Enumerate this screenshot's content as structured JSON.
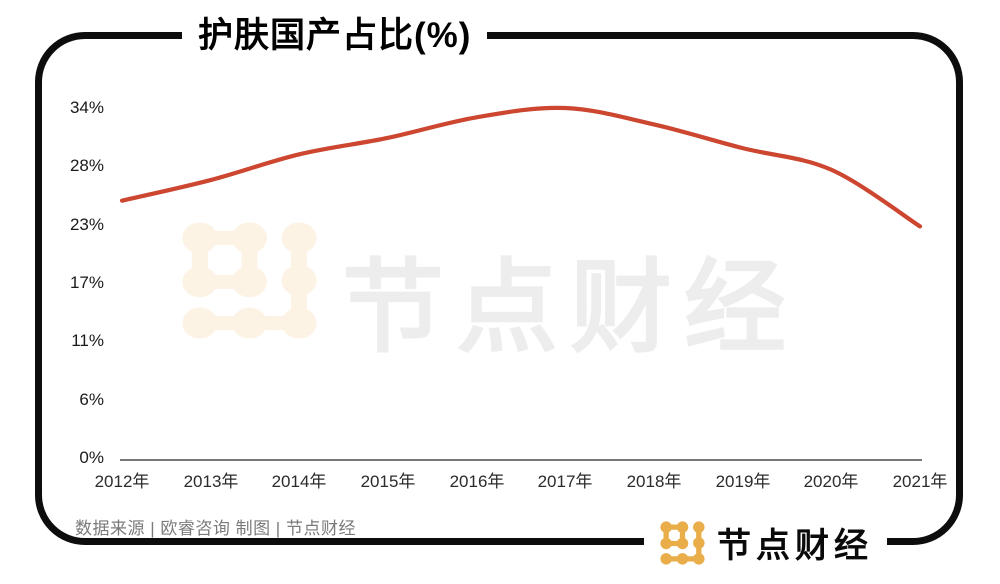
{
  "title": "护肤国产占比(%)",
  "watermark": {
    "text": "节点财经",
    "icon": "jiedian-node-dots-logo"
  },
  "footer": {
    "source_text": "数据来源 | 欧睿咨询  制图 | 节点财经",
    "logo_text": "节点财经",
    "logo_icon": "jiedian-node-dots-logo"
  },
  "colors": {
    "line": "#CC4630",
    "logo_gold": "#E9AE4A",
    "watermark_icon": "#FCF3E5",
    "watermark_text": "#EDEDED",
    "source_text": "#7A7A7A",
    "axis_line": "#4A4A4A",
    "border": "#0D0D0D"
  },
  "chart_data": {
    "type": "line",
    "title": "护肤国产占比(%)",
    "x": [
      "2012年",
      "2013年",
      "2014年",
      "2015年",
      "2016年",
      "2017年",
      "2018年",
      "2019年",
      "2020年",
      "2021年"
    ],
    "values": [
      25.0,
      27.0,
      29.5,
      31.1,
      33.1,
      34.0,
      32.4,
      30.1,
      28.0,
      22.5
    ],
    "yticks": [
      "0%",
      "6%",
      "11%",
      "17%",
      "23%",
      "28%",
      "34%"
    ],
    "ylim": [
      0,
      34
    ],
    "grid": false,
    "legend": false,
    "line_color": "#CC4630",
    "smooth": true
  }
}
